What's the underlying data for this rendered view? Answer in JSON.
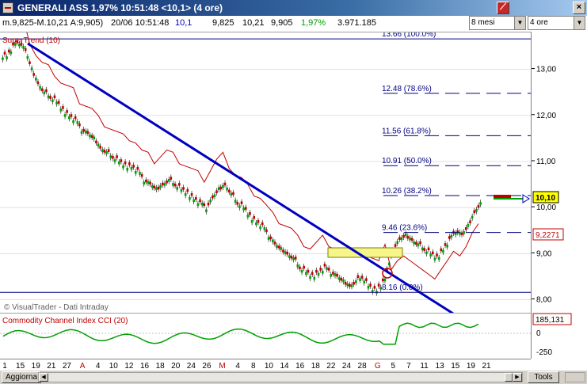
{
  "window": {
    "title": "GENERALI ASS 1,97% 10:51:48  <10,1>  (4 ore)",
    "period_select": "8 mesi",
    "interval_select": "4 ore"
  },
  "infobar": {
    "ma": "m.9,825-M.10,21 A:9,905)",
    "datetime": "20/06 10:51:48",
    "last": "10,1",
    "min": "9,825",
    "max": "10,21",
    "open": "9,905",
    "change": "1,97%",
    "volume": "3.971.185"
  },
  "main_pane": {
    "indicator_label": "SuperTrend (10)",
    "watermark": "© VisualTrader - Dati Intraday",
    "fib_levels": [
      {
        "label": "13.66 (100.0%)",
        "value": 13.66
      },
      {
        "label": "12.48 (78.6%)",
        "value": 12.48
      },
      {
        "label": "11.56 (61.8%)",
        "value": 11.56
      },
      {
        "label": "10.91 (50.0%)",
        "value": 10.91
      },
      {
        "label": "10.26 (38.2%)",
        "value": 10.26
      },
      {
        "label": "9.46 (23.6%)",
        "value": 9.46
      },
      {
        "label": "8.16 (0.0%)",
        "value": 8.16
      }
    ],
    "price_ticks": [
      "13,00",
      "12,00",
      "11,00",
      "10,00",
      "9,00",
      "8,00"
    ],
    "last_price_tag": "10,10",
    "supertrend_tag": "9,2271"
  },
  "indicator_pane": {
    "label": "Commodity Channel Index CCI (20)",
    "value_tag": "185,131",
    "ticks": [
      "0",
      "-250"
    ]
  },
  "date_axis": [
    "1",
    "15",
    "19",
    "21",
    "27",
    "A",
    "4",
    "10",
    "12",
    "16",
    "18",
    "20",
    "24",
    "26",
    "M",
    "4",
    "8",
    "10",
    "14",
    "16",
    "18",
    "22",
    "24",
    "28",
    "G",
    "5",
    "7",
    "11",
    "13",
    "15",
    "19",
    "21"
  ],
  "statusbar": {
    "aggiorna": "Aggiorna",
    "tools": "Tools"
  },
  "colors": {
    "up_candle": "#00a000",
    "down_candle": "#c00000",
    "trendline": "#0000c0",
    "fib": "#000080",
    "supertrend": "#c00000",
    "cci": "#00a000"
  },
  "chart_data": {
    "type": "candlestick",
    "ylim": [
      7.7,
      13.8
    ],
    "price_series": [
      13.3,
      13.5,
      13.6,
      13.4,
      13.0,
      12.7,
      12.5,
      12.4,
      12.3,
      12.1,
      12.0,
      11.9,
      11.7,
      11.6,
      11.5,
      11.3,
      11.2,
      11.1,
      11.0,
      10.9,
      10.9,
      10.8,
      10.6,
      10.5,
      10.4,
      10.5,
      10.6,
      10.5,
      10.4,
      10.3,
      10.2,
      10.1,
      10.0,
      10.2,
      10.4,
      10.5,
      10.3,
      10.1,
      10.0,
      9.8,
      9.7,
      9.6,
      9.4,
      9.2,
      9.1,
      9.0,
      8.9,
      8.7,
      8.6,
      8.5,
      8.6,
      8.7,
      8.6,
      8.5,
      8.4,
      8.3,
      8.4,
      8.5,
      8.3,
      8.2,
      8.3,
      8.6,
      9.1,
      9.3,
      9.4,
      9.3,
      9.2,
      9.1,
      9.0,
      8.9,
      9.1,
      9.3,
      9.5,
      9.4,
      9.6,
      9.9,
      10.1
    ]
  }
}
